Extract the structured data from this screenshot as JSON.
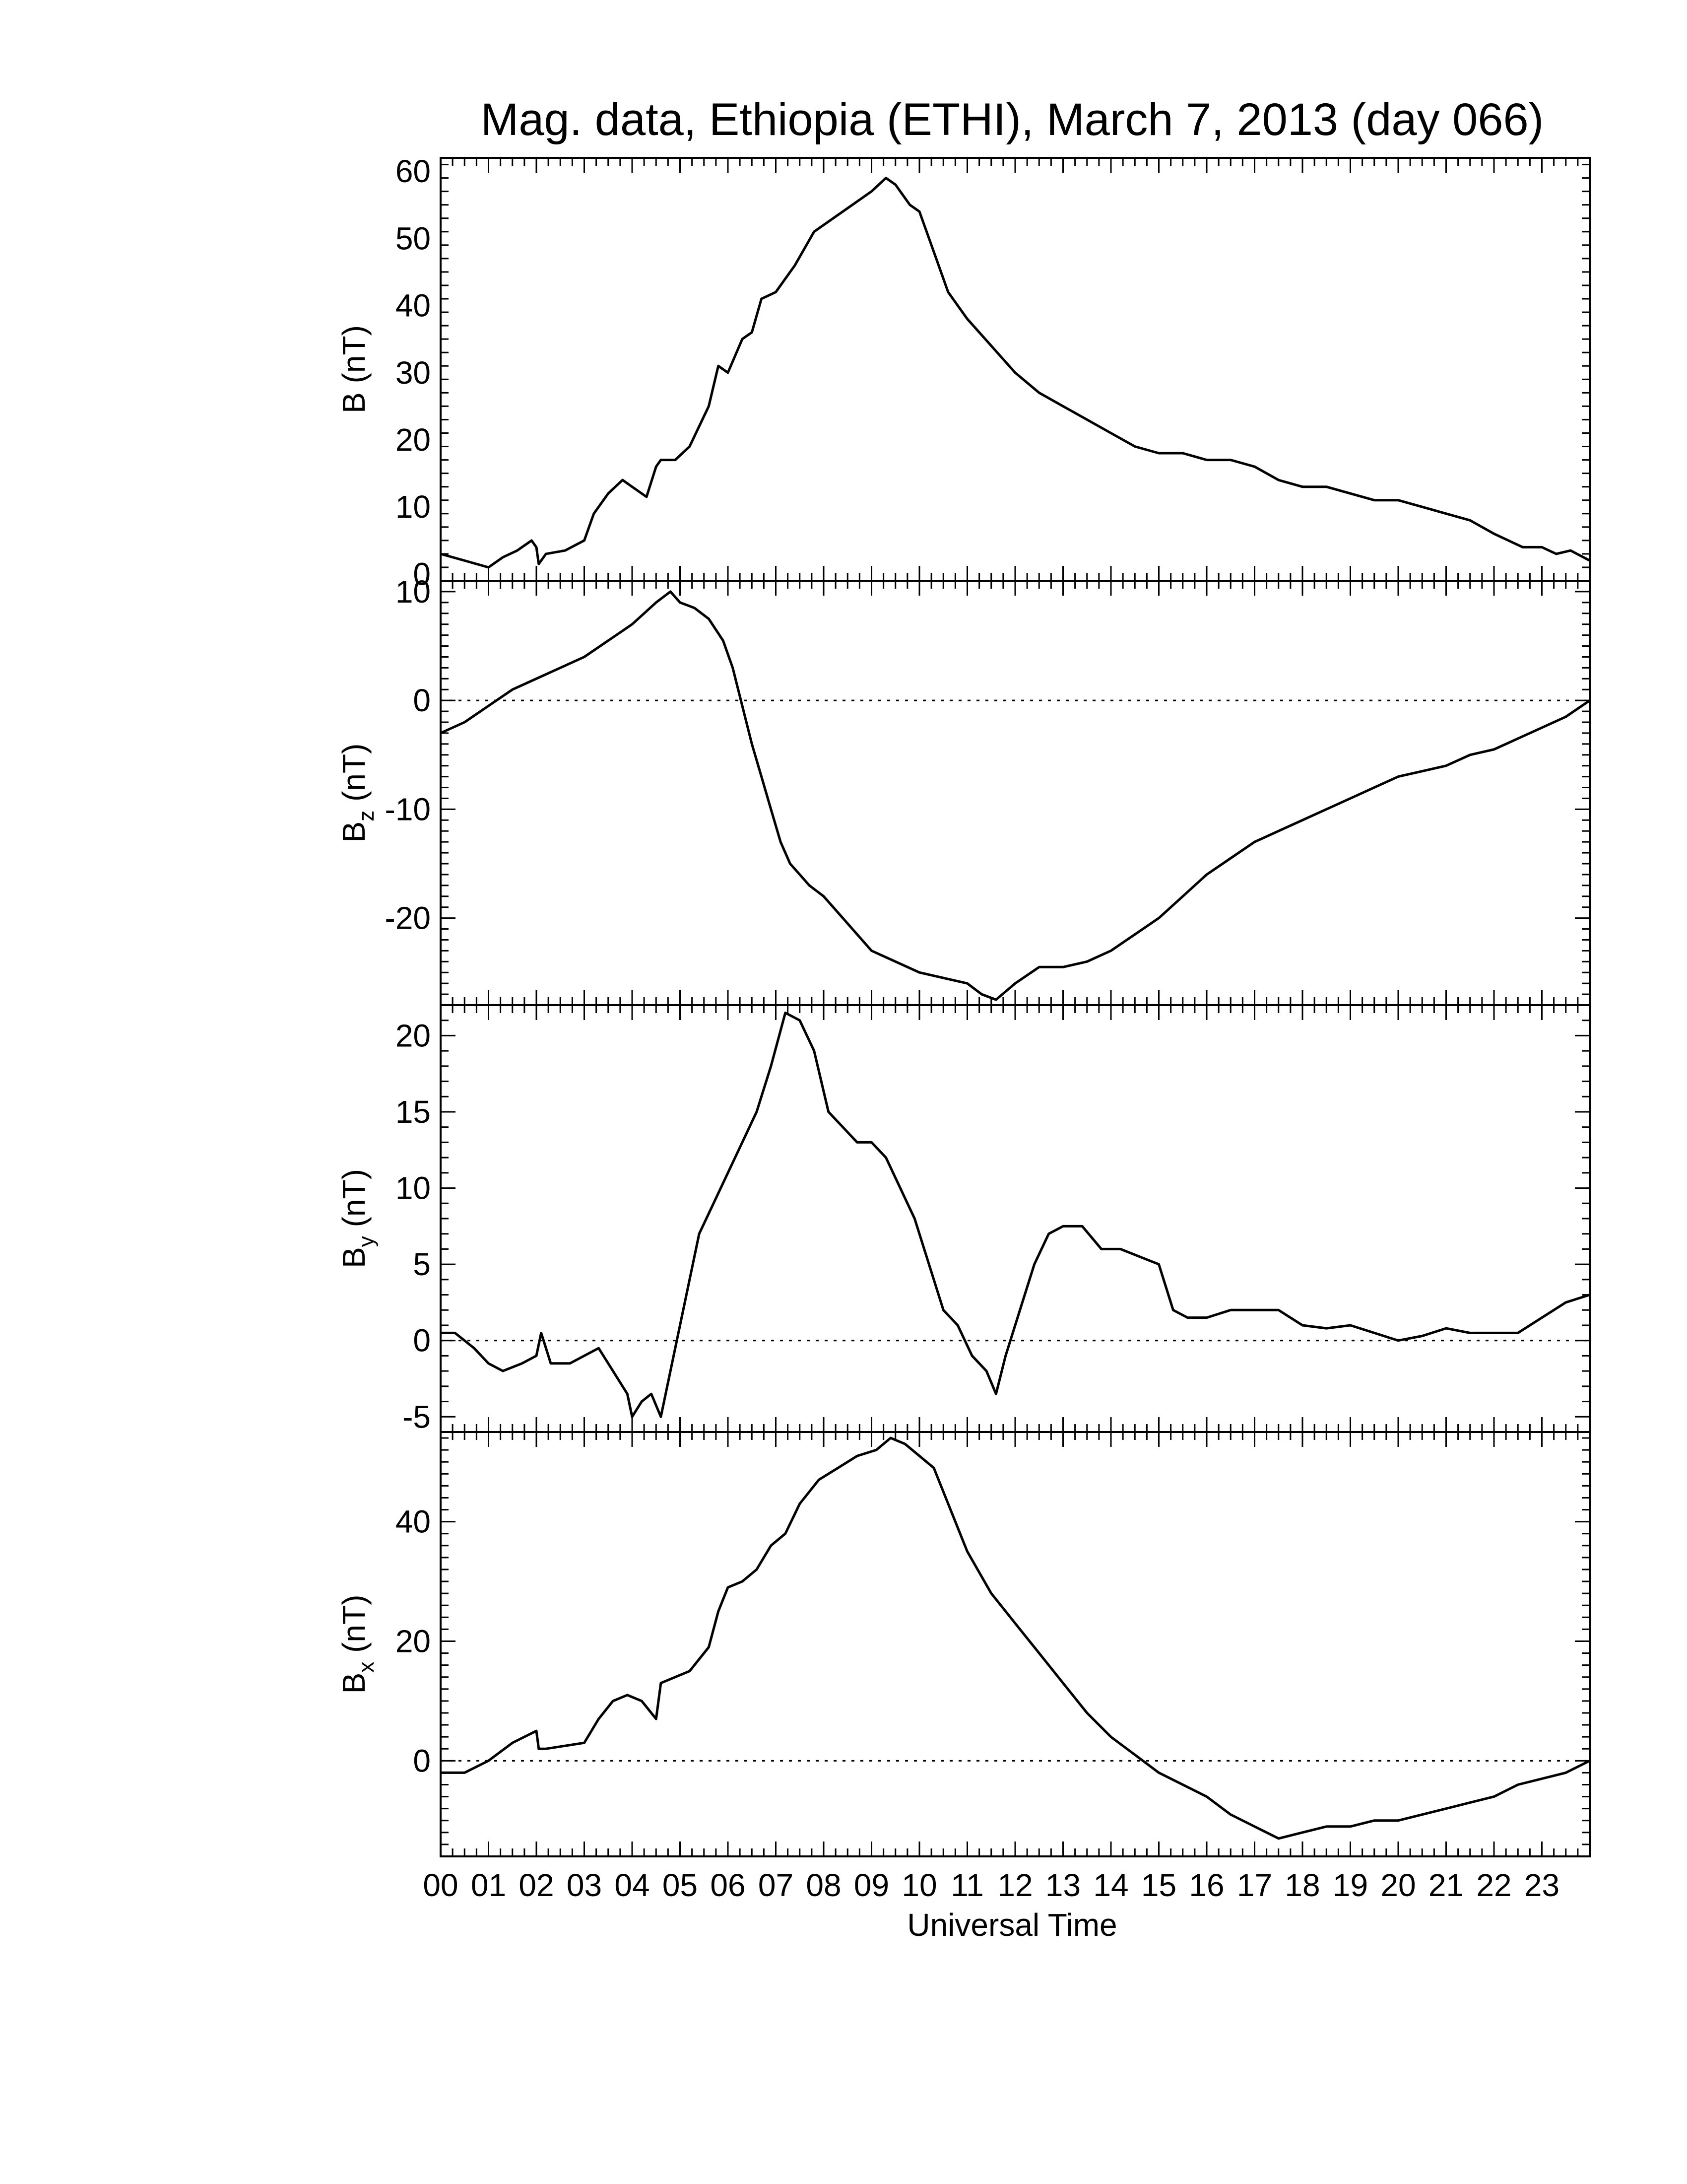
{
  "title": "Mag. data, Ethiopia (ETHI), March 7, 2013 (day 066)",
  "x_axis": {
    "label": "Universal Time",
    "range": [
      0,
      24
    ],
    "tick_labels": [
      "00",
      "01",
      "02",
      "03",
      "04",
      "05",
      "06",
      "07",
      "08",
      "09",
      "10",
      "11",
      "12",
      "13",
      "14",
      "15",
      "16",
      "17",
      "18",
      "19",
      "20",
      "21",
      "22",
      "23"
    ]
  },
  "chart_data": [
    {
      "type": "line",
      "ylabel": {
        "base": "B",
        "sub": "",
        "unit": "(nT)"
      },
      "ylim": [
        -1,
        62
      ],
      "yticks": [
        0,
        10,
        20,
        30,
        40,
        50,
        60
      ],
      "ytick_labels": [
        "0",
        "10",
        "20",
        "30",
        "40",
        "50",
        "60"
      ],
      "zero_line": false,
      "x": [
        0,
        0.5,
        1,
        1.3,
        1.6,
        1.9,
        2.0,
        2.05,
        2.2,
        2.6,
        3.0,
        3.2,
        3.5,
        3.8,
        4.0,
        4.3,
        4.5,
        4.6,
        4.9,
        5.2,
        5.6,
        5.8,
        6.0,
        6.3,
        6.5,
        6.7,
        7.0,
        7.2,
        7.4,
        7.8,
        8.2,
        8.6,
        9.0,
        9.3,
        9.5,
        9.8,
        10.0,
        10.3,
        10.6,
        11.0,
        11.5,
        12.0,
        12.5,
        13.0,
        13.5,
        14.0,
        14.5,
        15.0,
        15.5,
        16.0,
        16.5,
        17.0,
        17.5,
        18.0,
        18.5,
        19.0,
        19.5,
        20.0,
        20.5,
        21.0,
        21.5,
        22.0,
        22.3,
        22.6,
        23.0,
        23.3,
        23.6,
        24.0
      ],
      "values": [
        3,
        2,
        1,
        2.5,
        3.5,
        5,
        4,
        1.5,
        3,
        3.5,
        5,
        9,
        12,
        14,
        13,
        11.5,
        16,
        17,
        17,
        19,
        25,
        31,
        30,
        35,
        36,
        41,
        42,
        44,
        46,
        51,
        53,
        55,
        57,
        59,
        58,
        55,
        54,
        48,
        42,
        38,
        34,
        30,
        27,
        25,
        23,
        21,
        19,
        18,
        18,
        17,
        17,
        16,
        14,
        13,
        13,
        12,
        11,
        11,
        10,
        9,
        8,
        6,
        5,
        4,
        4,
        3,
        3.5,
        2
      ]
    },
    {
      "type": "line",
      "ylabel": {
        "base": "B",
        "sub": "z",
        "unit": "(nT)"
      },
      "ylim": [
        -28,
        11
      ],
      "yticks": [
        -20,
        -10,
        0,
        10
      ],
      "ytick_labels": [
        "-20",
        "-10",
        "0",
        "10"
      ],
      "zero_line": true,
      "x": [
        0,
        0.5,
        1,
        1.5,
        2,
        2.5,
        3,
        3.5,
        4,
        4.5,
        4.8,
        5.0,
        5.3,
        5.6,
        5.9,
        6.1,
        6.3,
        6.5,
        6.7,
        6.9,
        7.1,
        7.3,
        7.5,
        7.7,
        8.0,
        8.3,
        8.6,
        9.0,
        9.5,
        10.0,
        10.5,
        11.0,
        11.3,
        11.6,
        12.0,
        12.5,
        13.0,
        13.5,
        14.0,
        14.5,
        15.0,
        15.5,
        16.0,
        16.5,
        17.0,
        17.5,
        18.0,
        18.5,
        19.0,
        19.5,
        20.0,
        20.5,
        21.0,
        21.5,
        22.0,
        22.5,
        23.0,
        23.5,
        24.0
      ],
      "values": [
        -3,
        -2,
        -0.5,
        1,
        2,
        3,
        4,
        5.5,
        7,
        9,
        10,
        9,
        8.5,
        7.5,
        5.5,
        3,
        -0.5,
        -4,
        -7,
        -10,
        -13,
        -15,
        -16,
        -17,
        -18,
        -19.5,
        -21,
        -23,
        -24,
        -25,
        -25.5,
        -26,
        -27,
        -27.5,
        -26,
        -24.5,
        -24.5,
        -24,
        -23,
        -21.5,
        -20,
        -18,
        -16,
        -14.5,
        -13,
        -12,
        -11,
        -10,
        -9,
        -8,
        -7,
        -6.5,
        -6,
        -5,
        -4.5,
        -3.5,
        -2.5,
        -1.5,
        0
      ]
    },
    {
      "type": "line",
      "ylabel": {
        "base": "B",
        "sub": "y",
        "unit": "(nT)"
      },
      "ylim": [
        -6,
        22
      ],
      "yticks": [
        -5,
        0,
        5,
        10,
        15,
        20
      ],
      "ytick_labels": [
        "-5",
        "0",
        "5",
        "10",
        "15",
        "20"
      ],
      "zero_line": true,
      "x": [
        0,
        0.3,
        0.7,
        1,
        1.3,
        1.7,
        2.0,
        2.1,
        2.3,
        2.7,
        3.0,
        3.3,
        3.6,
        3.9,
        4.0,
        4.2,
        4.4,
        4.6,
        4.8,
        5.0,
        5.2,
        5.4,
        5.7,
        6.0,
        6.3,
        6.6,
        6.9,
        7.2,
        7.5,
        7.8,
        8.1,
        8.4,
        8.7,
        9.0,
        9.3,
        9.6,
        9.9,
        10.2,
        10.5,
        10.8,
        11.1,
        11.4,
        11.6,
        11.8,
        12.1,
        12.4,
        12.7,
        13.0,
        13.4,
        13.8,
        14.2,
        14.6,
        15.0,
        15.3,
        15.6,
        16.0,
        16.5,
        17.0,
        17.5,
        18.0,
        18.5,
        19.0,
        19.5,
        20.0,
        20.5,
        21.0,
        21.5,
        22.0,
        22.5,
        23.0,
        23.5,
        24.0
      ],
      "values": [
        0.5,
        0.5,
        -0.5,
        -1.5,
        -2,
        -1.5,
        -1,
        0.5,
        -1.5,
        -1.5,
        -1,
        -0.5,
        -2,
        -3.5,
        -5,
        -4,
        -3.5,
        -5,
        -2,
        1,
        4,
        7,
        9,
        11,
        13,
        15,
        18,
        21.5,
        21,
        19,
        15,
        14,
        13,
        13,
        12,
        10,
        8,
        5,
        2,
        1,
        -1,
        -2,
        -3.5,
        -1,
        2,
        5,
        7,
        7.5,
        7.5,
        6,
        6,
        5.5,
        5,
        2,
        1.5,
        1.5,
        2,
        2,
        2,
        1,
        0.8,
        1,
        0.5,
        0,
        0.3,
        0.8,
        0.5,
        0.5,
        0.5,
        1.5,
        2.5,
        3
      ]
    },
    {
      "type": "line",
      "ylabel": {
        "base": "B",
        "sub": "x",
        "unit": "(nT)"
      },
      "ylim": [
        -16,
        55
      ],
      "yticks": [
        0,
        20,
        40
      ],
      "ytick_labels": [
        "0",
        "20",
        "40"
      ],
      "zero_line": true,
      "x": [
        0,
        0.5,
        1,
        1.5,
        2.0,
        2.05,
        2.2,
        2.6,
        3.0,
        3.3,
        3.6,
        3.9,
        4.2,
        4.5,
        4.6,
        4.9,
        5.2,
        5.6,
        5.8,
        6.0,
        6.3,
        6.6,
        6.9,
        7.2,
        7.5,
        7.9,
        8.3,
        8.7,
        9.1,
        9.4,
        9.7,
        10.0,
        10.3,
        10.6,
        11.0,
        11.5,
        12.0,
        12.5,
        13.0,
        13.5,
        14.0,
        14.5,
        15.0,
        15.5,
        16.0,
        16.5,
        17.0,
        17.5,
        18.0,
        18.5,
        19.0,
        19.5,
        20.0,
        20.5,
        21.0,
        21.5,
        22.0,
        22.5,
        23.0,
        23.5,
        24.0
      ],
      "values": [
        -2,
        -2,
        0,
        3,
        5,
        2,
        2,
        2.5,
        3,
        7,
        10,
        11,
        10,
        7,
        13,
        14,
        15,
        19,
        25,
        29,
        30,
        32,
        36,
        38,
        43,
        47,
        49,
        51,
        52,
        54,
        53,
        51,
        49,
        43,
        35,
        28,
        23,
        18,
        13,
        8,
        4,
        1,
        -2,
        -4,
        -6,
        -9,
        -11,
        -13,
        -12,
        -11,
        -11,
        -10,
        -10,
        -9,
        -8,
        -7,
        -6,
        -4,
        -3,
        -2,
        0
      ]
    }
  ]
}
